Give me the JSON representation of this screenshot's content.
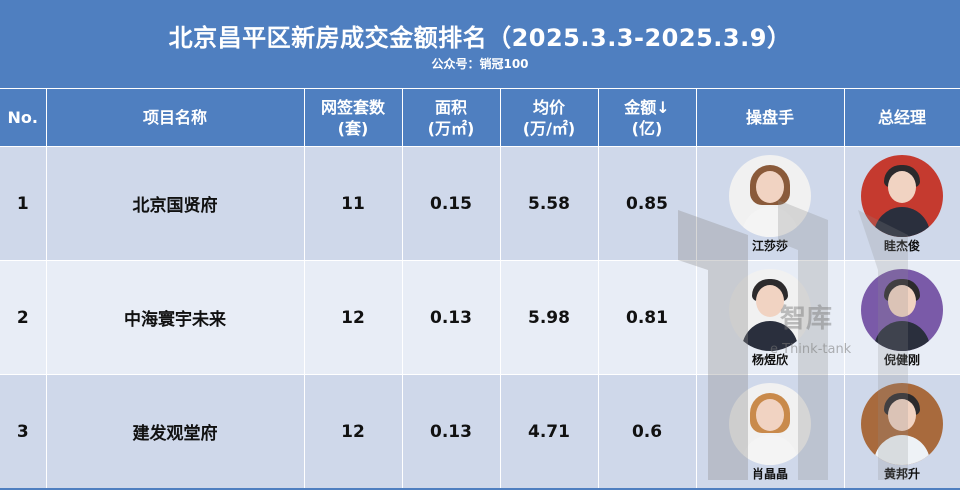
{
  "header": {
    "title": "北京昌平区新房成交金额排名（2025.3.3-2025.3.9）",
    "subtitle": "公众号：销冠100"
  },
  "columns": [
    {
      "label": "No."
    },
    {
      "label": "项目名称"
    },
    {
      "line1": "网签套数",
      "line2": "(套)"
    },
    {
      "line1": "面积",
      "line2": "(万㎡)"
    },
    {
      "line1": "均价",
      "line2": "(万/㎡)"
    },
    {
      "line1": "金额↓",
      "line2": "(亿)"
    },
    {
      "label": "操盘手"
    },
    {
      "label": "总经理"
    }
  ],
  "rows": [
    {
      "no": "1",
      "project": "北京国贤府",
      "units": "11",
      "area": "0.15",
      "price": "5.58",
      "amount": "0.85",
      "operator": {
        "name": "江莎莎",
        "avatar": "female-avatar-icon"
      },
      "manager": {
        "name": "眭杰俊",
        "avatar": "male-avatar-icon"
      }
    },
    {
      "no": "2",
      "project": "中海寰宇未来",
      "units": "12",
      "area": "0.13",
      "price": "5.98",
      "amount": "0.81",
      "operator": {
        "name": "杨煜欣",
        "avatar": "male-avatar-icon"
      },
      "manager": {
        "name": "倪健刚",
        "avatar": "male-avatar-icon"
      }
    },
    {
      "no": "3",
      "project": "建发观堂府",
      "units": "12",
      "area": "0.13",
      "price": "4.71",
      "amount": "0.6",
      "operator": {
        "name": "肖晶晶",
        "avatar": "female-avatar-icon"
      },
      "manager": {
        "name": "黄邦升",
        "avatar": "male-avatar-icon"
      }
    }
  ],
  "watermark": {
    "zh": "智库",
    "en": "e Think-tank"
  },
  "colors": {
    "header_bg": "#4f7fc0",
    "row_odd": "#cfd8ea",
    "row_even": "#e8edf6"
  }
}
